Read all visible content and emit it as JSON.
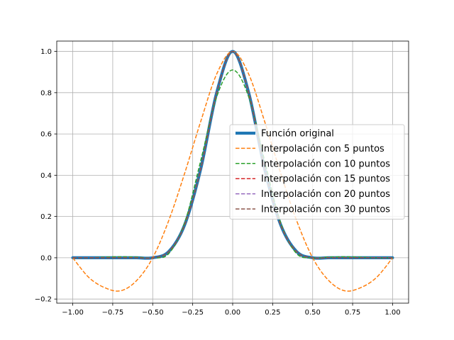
{
  "chart_data": {
    "type": "line",
    "title": "",
    "xlabel": "",
    "ylabel": "",
    "xlim": [
      -1.1,
      1.1
    ],
    "ylim": [
      -0.22,
      1.05
    ],
    "grid": true,
    "legend_position": "center-right",
    "x_ticks": [
      -1.0,
      -0.75,
      -0.5,
      -0.25,
      0.0,
      0.25,
      0.5,
      0.75,
      1.0
    ],
    "x_tick_labels": [
      "−1.00",
      "−0.75",
      "−0.50",
      "−0.25",
      "0.00",
      "0.25",
      "0.50",
      "0.75",
      "1.00"
    ],
    "y_ticks": [
      -0.2,
      0.0,
      0.2,
      0.4,
      0.6,
      0.8,
      1.0
    ],
    "y_tick_labels": [
      "−0.2",
      "0.0",
      "0.2",
      "0.4",
      "0.6",
      "0.8",
      "1.0"
    ],
    "x": [
      -1.0,
      -0.9,
      -0.8,
      -0.7,
      -0.6,
      -0.5,
      -0.4,
      -0.3,
      -0.2,
      -0.1,
      0.0,
      0.1,
      0.2,
      0.3,
      0.4,
      0.5,
      0.6,
      0.7,
      0.8,
      0.9,
      1.0
    ],
    "series": [
      {
        "name": "Función original",
        "color": "#1f77b4",
        "style": "solid",
        "values": [
          0.0,
          0.0,
          0.0,
          0.0,
          0.0,
          0.0,
          0.03,
          0.16,
          0.43,
          0.8,
          1.0,
          0.8,
          0.43,
          0.16,
          0.03,
          0.0,
          0.0,
          0.0,
          0.0,
          0.0,
          0.0
        ]
      },
      {
        "name": "Interpolación con 5 puntos",
        "color": "#ff7f0e",
        "style": "dashed",
        "values": [
          0.0,
          -0.095,
          -0.145,
          -0.16,
          -0.11,
          0.0,
          0.18,
          0.41,
          0.66,
          0.89,
          1.0,
          0.89,
          0.66,
          0.41,
          0.18,
          0.0,
          -0.11,
          -0.16,
          -0.145,
          -0.095,
          0.0
        ]
      },
      {
        "name": "Interpolación con 10 puntos",
        "color": "#2ca02c",
        "style": "dashed",
        "values": [
          0.0,
          0.0,
          0.003,
          0.005,
          0.003,
          0.0,
          0.02,
          0.17,
          0.47,
          0.78,
          0.91,
          0.78,
          0.47,
          0.17,
          0.02,
          0.0,
          0.003,
          0.005,
          0.003,
          0.0,
          0.0
        ]
      },
      {
        "name": "Interpolación con 15 puntos",
        "color": "#d62728",
        "style": "dashed",
        "values": [
          0.0,
          0.0,
          0.0,
          0.0,
          0.0,
          0.0,
          0.03,
          0.16,
          0.43,
          0.8,
          1.0,
          0.8,
          0.43,
          0.16,
          0.03,
          0.0,
          0.0,
          0.0,
          0.0,
          0.0,
          0.0
        ]
      },
      {
        "name": "Interpolación con 20 puntos",
        "color": "#9467bd",
        "style": "dashed",
        "values": [
          0.0,
          0.0,
          0.0,
          0.0,
          0.0,
          0.0,
          0.03,
          0.16,
          0.43,
          0.8,
          1.0,
          0.8,
          0.43,
          0.16,
          0.03,
          0.0,
          0.0,
          0.0,
          0.0,
          0.0,
          0.0
        ]
      },
      {
        "name": "Interpolación con 30 puntos",
        "color": "#8c564b",
        "style": "dashed",
        "values": [
          0.0,
          0.0,
          0.0,
          0.0,
          0.0,
          0.0,
          0.03,
          0.16,
          0.43,
          0.8,
          1.0,
          0.8,
          0.43,
          0.16,
          0.03,
          0.0,
          0.0,
          0.0,
          0.0,
          0.0,
          0.0
        ]
      }
    ]
  }
}
